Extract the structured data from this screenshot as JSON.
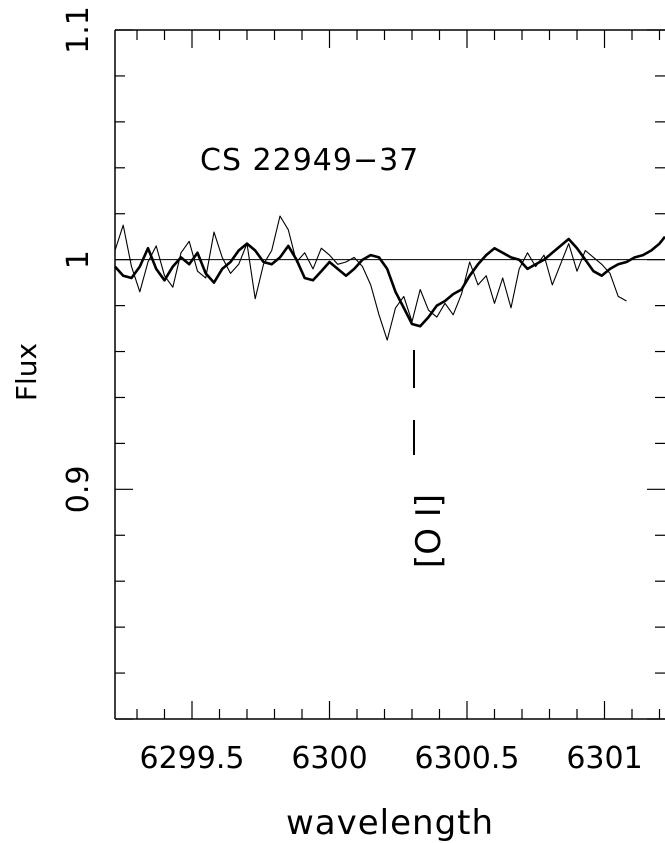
{
  "chart_data": {
    "type": "line",
    "title": "",
    "xlabel": "wavelength",
    "ylabel": "Flux",
    "xlim": [
      6299.22,
      6301.22
    ],
    "ylim": [
      0.8,
      1.1
    ],
    "grid": false,
    "x_ticks": [
      "6299.5",
      "6300",
      "6300.5",
      "6301"
    ],
    "x_tick_values": [
      6299.5,
      6300,
      6300.5,
      6301
    ],
    "y_ticks": [
      "0.9",
      "1",
      "1.1"
    ],
    "y_tick_values": [
      0.9,
      1.0,
      1.1
    ],
    "reference_line": 1.0,
    "annotations": {
      "object_label": "CS 22949−37",
      "line_label": "[O I]",
      "line_wavelength": 6300.3
    },
    "series": [
      {
        "style": "thin",
        "x": [
          6299.22,
          6299.25,
          6299.28,
          6299.31,
          6299.34,
          6299.37,
          6299.4,
          6299.43,
          6299.46,
          6299.49,
          6299.52,
          6299.55,
          6299.58,
          6299.61,
          6299.64,
          6299.67,
          6299.7,
          6299.73,
          6299.76,
          6299.79,
          6299.82,
          6299.85,
          6299.88,
          6299.91,
          6299.94,
          6299.97,
          6300.0,
          6300.03,
          6300.06,
          6300.09,
          6300.12,
          6300.15,
          6300.18,
          6300.21,
          6300.24,
          6300.27,
          6300.3,
          6300.33,
          6300.36,
          6300.39,
          6300.42,
          6300.45,
          6300.48,
          6300.51,
          6300.54,
          6300.57,
          6300.6,
          6300.63,
          6300.66,
          6300.69,
          6300.72,
          6300.75,
          6300.78,
          6300.81,
          6300.84,
          6300.87,
          6300.9,
          6300.93,
          6300.96,
          6300.99,
          6301.02,
          6301.05,
          6301.08
        ],
        "y": [
          1.004,
          1.015,
          0.997,
          0.986,
          0.999,
          1.006,
          0.993,
          0.988,
          1.003,
          1.008,
          0.995,
          0.992,
          1.012,
          1.001,
          0.994,
          0.998,
          1.007,
          0.983,
          0.998,
          1.004,
          1.019,
          1.013,
          0.999,
          1.003,
          0.996,
          1.005,
          1.002,
          0.998,
          0.999,
          1.001,
          0.997,
          0.989,
          0.976,
          0.965,
          0.979,
          0.984,
          0.973,
          0.987,
          0.978,
          0.975,
          0.981,
          0.976,
          0.985,
          0.999,
          0.989,
          0.993,
          0.981,
          0.992,
          0.979,
          0.996,
          1.003,
          0.997,
          1.002,
          0.989,
          0.998,
          1.007,
          0.995,
          1.004,
          1.001,
          0.998,
          0.994,
          0.984,
          0.982
        ]
      },
      {
        "style": "thick",
        "x": [
          6299.22,
          6299.25,
          6299.28,
          6299.31,
          6299.34,
          6299.37,
          6299.4,
          6299.43,
          6299.46,
          6299.49,
          6299.52,
          6299.55,
          6299.58,
          6299.61,
          6299.64,
          6299.67,
          6299.7,
          6299.73,
          6299.76,
          6299.79,
          6299.82,
          6299.85,
          6299.88,
          6299.91,
          6299.94,
          6299.97,
          6300.0,
          6300.03,
          6300.06,
          6300.09,
          6300.12,
          6300.15,
          6300.18,
          6300.21,
          6300.24,
          6300.27,
          6300.3,
          6300.33,
          6300.36,
          6300.39,
          6300.42,
          6300.45,
          6300.48,
          6300.51,
          6300.54,
          6300.57,
          6300.6,
          6300.63,
          6300.66,
          6300.69,
          6300.72,
          6300.75,
          6300.78,
          6300.81,
          6300.84,
          6300.87,
          6300.9,
          6300.93,
          6300.96,
          6300.99,
          6301.02,
          6301.05,
          6301.08,
          6301.11,
          6301.14,
          6301.17,
          6301.2,
          6301.22
        ],
        "y": [
          0.997,
          0.993,
          0.992,
          0.997,
          1.005,
          0.996,
          0.991,
          0.997,
          1.001,
          0.998,
          1.003,
          0.994,
          0.99,
          0.996,
          0.999,
          1.004,
          1.007,
          1.004,
          0.999,
          0.998,
          1.001,
          1.006,
          1.0,
          0.992,
          0.991,
          0.995,
          0.999,
          0.996,
          0.993,
          0.996,
          1.0,
          1.002,
          1.001,
          0.996,
          0.986,
          0.979,
          0.972,
          0.971,
          0.975,
          0.98,
          0.982,
          0.985,
          0.987,
          0.993,
          0.998,
          1.002,
          1.005,
          1.003,
          1.001,
          1.0,
          0.996,
          0.998,
          1.0,
          1.003,
          1.006,
          1.009,
          1.005,
          1.0,
          0.995,
          0.993,
          0.996,
          0.998,
          0.999,
          1.001,
          1.002,
          1.004,
          1.007,
          1.01
        ]
      }
    ]
  }
}
